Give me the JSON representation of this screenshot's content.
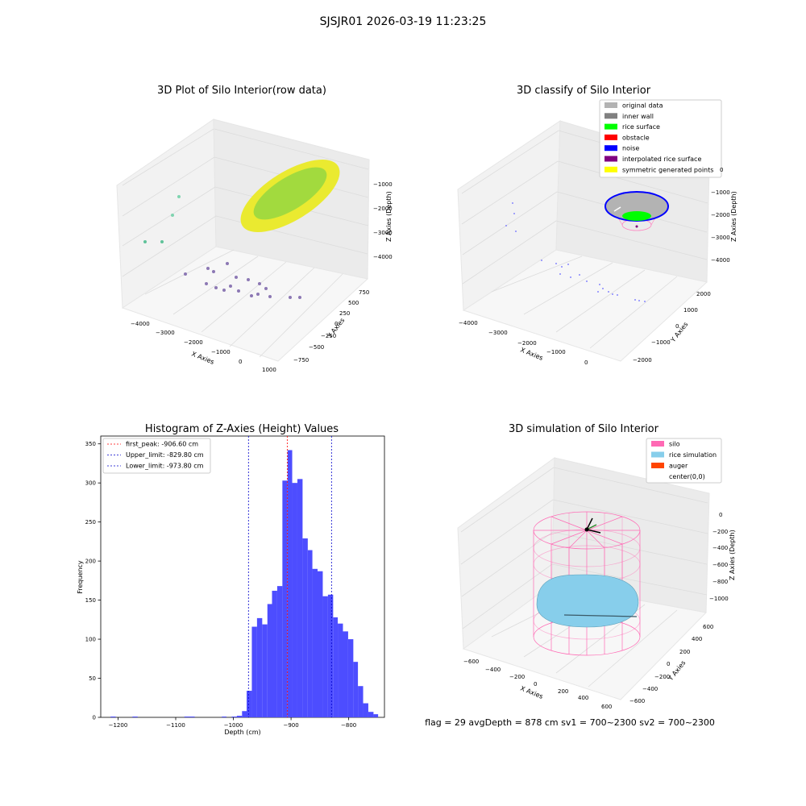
{
  "suptitle": "SJSJR01 2026-03-19 11:23:25",
  "footer": "flag = 29  avgDepth = 878 cm  sv1 = 700~2300  sv2 = 700~2300",
  "panels": {
    "p1": {
      "title": "3D Plot of Silo Interior(row data)",
      "xlabel": "X Axies",
      "ylabel": "Y Axies",
      "zlabel": "Z Axies (Depth)",
      "xticks": [
        "−4000",
        "−3000",
        "−2000",
        "−1000",
        "0",
        "1000"
      ],
      "yticks": [
        "−750",
        "−500",
        "−250",
        "0",
        "250",
        "500",
        "750"
      ],
      "zticks": [
        "−1000",
        "−2000",
        "−3000",
        "−4000"
      ]
    },
    "p2": {
      "title": "3D classify of Silo Interior",
      "xlabel": "X Axies",
      "ylabel": "Y Axies",
      "zlabel": "Z Axies (Depth)",
      "xticks": [
        "−4000",
        "−3000",
        "−2000",
        "−1000",
        "0"
      ],
      "yticks": [
        "−2000",
        "−1000",
        "0",
        "1000",
        "2000"
      ],
      "zticks": [
        "−1000",
        "−2000",
        "−3000",
        "−4000"
      ],
      "legend": [
        {
          "label": "original data",
          "color": "#b3b3b3"
        },
        {
          "label": "inner wall",
          "color": "#808080"
        },
        {
          "label": "rice surface",
          "color": "#00ff00"
        },
        {
          "label": "obstacle",
          "color": "#ff0000"
        },
        {
          "label": "noise",
          "color": "#0000ff"
        },
        {
          "label": "interpolated rice surface",
          "color": "#800080"
        },
        {
          "label": "symmetric generated points",
          "color": "#ffff00"
        }
      ],
      "legend_right_clip": "0"
    },
    "p4": {
      "title": "3D simulation of Silo Interior",
      "xlabel": "X Axies",
      "ylabel": "Y Axies",
      "zlabel": "Z Axies (Depth)",
      "xticks": [
        "−600",
        "−400",
        "−200",
        "0",
        "200",
        "400",
        "600"
      ],
      "yticks": [
        "−600",
        "−400",
        "−200",
        "0",
        "200",
        "400",
        "600"
      ],
      "zticks": [
        "0",
        "−200",
        "−400",
        "−600",
        "−800",
        "−1000"
      ],
      "legend": [
        {
          "label": "silo",
          "color": "#ff69b4"
        },
        {
          "label": "rice simulation",
          "color": "#87ceeb"
        },
        {
          "label": "auger",
          "color": "#ff4500"
        },
        {
          "label": "center(0,0)",
          "color": "#ffffff"
        }
      ]
    }
  },
  "chart_data": {
    "type": "bar",
    "title": "Histogram of Z-Axies (Height) Values",
    "xlabel": "Depth (cm)",
    "ylabel": "Frequency",
    "xlim": [
      -1230,
      -738
    ],
    "ylim": [
      0,
      360
    ],
    "xticks": [
      -1200,
      -1100,
      -1000,
      -900,
      -800
    ],
    "yticks": [
      0,
      50,
      100,
      150,
      200,
      250,
      300,
      350
    ],
    "bar_color": "#4d4dff",
    "bins": [
      {
        "x0": -1213,
        "x1": -1204,
        "v": 1
      },
      {
        "x0": -1175,
        "x1": -1166,
        "v": 1
      },
      {
        "x0": -1085,
        "x1": -1067,
        "v": 1
      },
      {
        "x0": -1020,
        "x1": -1012,
        "v": 1
      },
      {
        "x0": -1003,
        "x1": -994,
        "v": 1
      },
      {
        "x0": -994,
        "x1": -985,
        "v": 2
      },
      {
        "x0": -985,
        "x1": -977,
        "v": 8
      },
      {
        "x0": -977,
        "x1": -968,
        "v": 34
      },
      {
        "x0": -968,
        "x1": -959,
        "v": 116
      },
      {
        "x0": -959,
        "x1": -950,
        "v": 127
      },
      {
        "x0": -950,
        "x1": -941,
        "v": 119
      },
      {
        "x0": -941,
        "x1": -933,
        "v": 145
      },
      {
        "x0": -933,
        "x1": -924,
        "v": 162
      },
      {
        "x0": -924,
        "x1": -915,
        "v": 168
      },
      {
        "x0": -915,
        "x1": -906,
        "v": 303
      },
      {
        "x0": -906,
        "x1": -898,
        "v": 342
      },
      {
        "x0": -898,
        "x1": -889,
        "v": 300
      },
      {
        "x0": -889,
        "x1": -880,
        "v": 305
      },
      {
        "x0": -880,
        "x1": -871,
        "v": 229
      },
      {
        "x0": -871,
        "x1": -863,
        "v": 214
      },
      {
        "x0": -863,
        "x1": -854,
        "v": 190
      },
      {
        "x0": -854,
        "x1": -845,
        "v": 187
      },
      {
        "x0": -845,
        "x1": -836,
        "v": 155
      },
      {
        "x0": -836,
        "x1": -827,
        "v": 157
      },
      {
        "x0": -827,
        "x1": -819,
        "v": 128
      },
      {
        "x0": -819,
        "x1": -810,
        "v": 120
      },
      {
        "x0": -810,
        "x1": -801,
        "v": 110
      },
      {
        "x0": -801,
        "x1": -792,
        "v": 100
      },
      {
        "x0": -792,
        "x1": -784,
        "v": 71
      },
      {
        "x0": -784,
        "x1": -775,
        "v": 40
      },
      {
        "x0": -775,
        "x1": -766,
        "v": 18
      },
      {
        "x0": -766,
        "x1": -757,
        "v": 7
      },
      {
        "x0": -757,
        "x1": -749,
        "v": 4
      }
    ],
    "vlines": [
      {
        "x": -906.6,
        "label": "first_peak: -906.60 cm",
        "color": "#ff0000"
      },
      {
        "x": -829.8,
        "label": "Upper_limit: -829.80 cm",
        "color": "#0000cc"
      },
      {
        "x": -973.8,
        "label": "Lower_limit: -973.80 cm",
        "color": "#0000cc"
      }
    ]
  }
}
